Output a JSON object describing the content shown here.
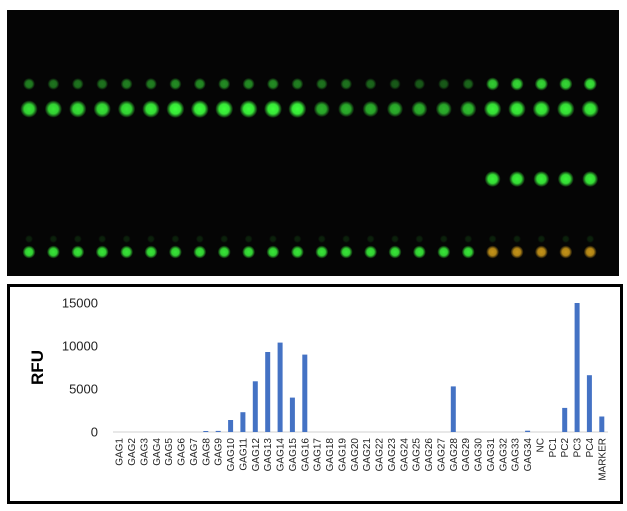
{
  "blot_image": {
    "background": "#050505",
    "spot_colors": {
      "green": "#3dff3d",
      "amber": "#d9a21a"
    },
    "columns": 24,
    "rows": 4
  },
  "chart_data": {
    "type": "bar",
    "title": "",
    "xlabel": "",
    "ylabel": "RFU",
    "ylim": [
      0,
      15000
    ],
    "yticks": [
      0,
      5000,
      10000,
      15000
    ],
    "ytick_labels": [
      "0",
      "5000",
      "10000",
      "15000"
    ],
    "grid": false,
    "bar_color": "#4472c4",
    "categories": [
      "GAG1",
      "GAG2",
      "GAG3",
      "GAG4",
      "GAG5",
      "GAG6",
      "GAG7",
      "GAG8",
      "GAG9",
      "GAG10",
      "GAG11",
      "GAG12",
      "GAG13",
      "GAG14",
      "GAG15",
      "GAG16",
      "GAG17",
      "GAG18",
      "GAG19",
      "GAG20",
      "GAG21",
      "GAG22",
      "GAG23",
      "GAG24",
      "GAG25",
      "GAG26",
      "GAG27",
      "GAG28",
      "GAG29",
      "GAG30",
      "GAG31",
      "GAG32",
      "GAG33",
      "GAG34",
      "NC",
      "PC1",
      "PC2",
      "PC3",
      "PC4",
      "MARKER"
    ],
    "values": [
      0,
      0,
      0,
      0,
      0,
      0,
      0,
      120,
      130,
      1400,
      2300,
      5900,
      9300,
      10400,
      4000,
      9000,
      0,
      0,
      0,
      0,
      0,
      0,
      0,
      0,
      0,
      0,
      0,
      5300,
      0,
      0,
      0,
      0,
      0,
      150,
      0,
      0,
      2800,
      15000,
      6600,
      1800
    ]
  }
}
